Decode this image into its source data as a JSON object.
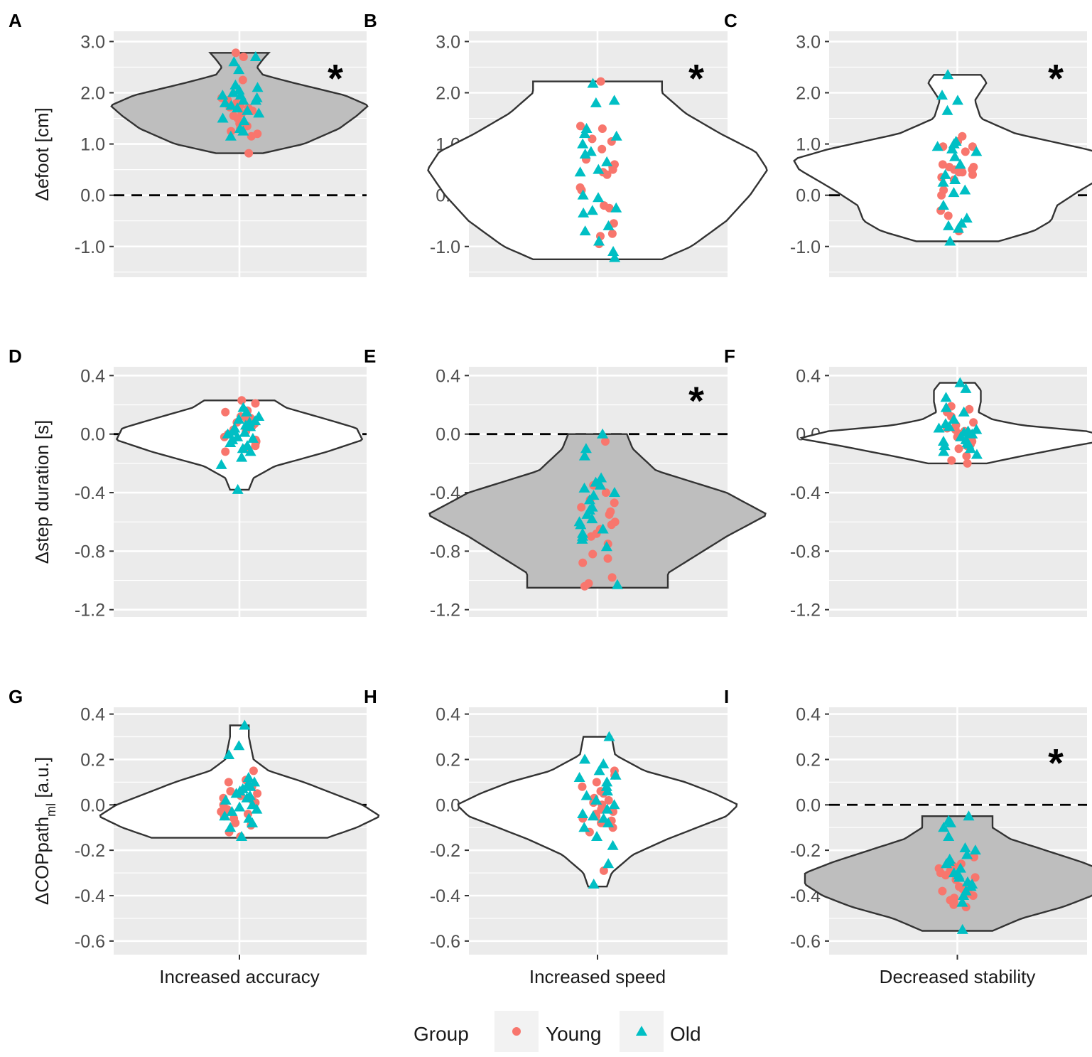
{
  "legend": {
    "title": "Group",
    "items": [
      {
        "label": "Young",
        "shape": "circle",
        "color": "#F8766D"
      },
      {
        "label": "Old",
        "shape": "triangle",
        "color": "#00BFC4"
      }
    ]
  },
  "colors": {
    "panel_bg": "#EBEBEB",
    "grid": "#FFFFFF",
    "violin_significant": "#BEBEBE",
    "violin_default": "#FFFFFF",
    "violin_stroke": "#333333",
    "young": "#F8766D",
    "old": "#00BFC4"
  },
  "chart_data": [
    {
      "panel": "A",
      "type": "violin",
      "row": 0,
      "col": 0,
      "ylabel": "Δefoot [cm]",
      "ylim": [
        -1.6,
        3.2
      ],
      "yticks": [
        3.0,
        2.0,
        1.0,
        0.0,
        -1.0
      ],
      "tick_labels": [
        "3.0",
        "2.0",
        "1.0",
        "0.0",
        "-1.0"
      ],
      "xlabel": "",
      "significant": true,
      "star": "*",
      "violin": {
        "range": [
          0.82,
          2.78
        ],
        "profile": [
          [
            0.82,
            0.2
          ],
          [
            1.0,
            0.55
          ],
          [
            1.3,
            0.85
          ],
          [
            1.55,
            1.0
          ],
          [
            1.75,
            1.1
          ],
          [
            1.95,
            0.9
          ],
          [
            2.2,
            0.45
          ],
          [
            2.35,
            0.2
          ],
          [
            2.5,
            0.15
          ],
          [
            2.65,
            0.2
          ],
          [
            2.78,
            0.25
          ]
        ]
      },
      "young": [
        1.85,
        1.7,
        1.6,
        1.5,
        1.25,
        1.15,
        0.82,
        1.4,
        1.3,
        1.75,
        1.9,
        2.25,
        2.7,
        2.78,
        1.65,
        1.55,
        1.8,
        1.72,
        1.2,
        1.35
      ],
      "old": [
        2.7,
        2.45,
        2.6,
        2.05,
        1.95,
        1.85,
        1.75,
        2.0,
        1.45,
        1.25,
        1.3,
        1.15,
        1.9,
        2.1,
        1.8,
        1.65,
        1.5,
        1.6,
        1.95,
        2.15,
        1.85,
        1.7
      ]
    },
    {
      "panel": "B",
      "type": "violin",
      "row": 0,
      "col": 1,
      "ylabel": "",
      "ylim": [
        -1.6,
        3.2
      ],
      "yticks": [
        3.0,
        2.0,
        1.0,
        0.0,
        -1.0
      ],
      "tick_labels": [
        "3.0",
        "2.0",
        "1.0",
        "0.0",
        "-1.0"
      ],
      "xlabel": "",
      "significant": false,
      "star": "*",
      "violin": {
        "range": [
          -1.25,
          2.22
        ],
        "profile": [
          [
            -1.25,
            0.55
          ],
          [
            -1.0,
            0.8
          ],
          [
            -0.5,
            1.1
          ],
          [
            0.0,
            1.3
          ],
          [
            0.5,
            1.45
          ],
          [
            0.85,
            1.35
          ],
          [
            1.2,
            1.05
          ],
          [
            1.6,
            0.75
          ],
          [
            2.0,
            0.55
          ],
          [
            2.22,
            0.55
          ]
        ]
      },
      "young": [
        2.22,
        1.35,
        1.1,
        1.05,
        0.7,
        0.55,
        0.45,
        0.4,
        0.1,
        -0.2,
        -0.55,
        -0.8,
        -0.95,
        1.3,
        0.9,
        0.6,
        0.5,
        0.15,
        -0.25,
        -0.75
      ],
      "old": [
        2.18,
        1.85,
        1.8,
        1.3,
        1.2,
        1.15,
        0.85,
        0.8,
        0.5,
        0.45,
        -0.05,
        -0.3,
        -0.35,
        -0.6,
        -0.7,
        -0.9,
        -1.1,
        -1.22,
        0.0,
        -0.25,
        0.65,
        1.0
      ]
    },
    {
      "panel": "C",
      "type": "violin",
      "row": 0,
      "col": 2,
      "ylabel": "",
      "ylim": [
        -1.6,
        3.2
      ],
      "yticks": [
        3.0,
        2.0,
        1.0,
        0.0,
        -1.0
      ],
      "tick_labels": [
        "3.0",
        "2.0",
        "1.0",
        "0.0",
        "-1.0"
      ],
      "xlabel": "",
      "significant": false,
      "star": "*",
      "violin": {
        "range": [
          -0.9,
          2.35
        ],
        "profile": [
          [
            -0.9,
            0.35
          ],
          [
            -0.7,
            0.65
          ],
          [
            -0.5,
            0.8
          ],
          [
            -0.2,
            0.85
          ],
          [
            0.1,
            1.05
          ],
          [
            0.5,
            1.35
          ],
          [
            0.7,
            1.4
          ],
          [
            0.9,
            1.1
          ],
          [
            1.2,
            0.5
          ],
          [
            1.5,
            0.2
          ],
          [
            1.85,
            0.15
          ],
          [
            2.2,
            0.25
          ],
          [
            2.35,
            0.2
          ]
        ]
      },
      "young": [
        1.15,
        1.05,
        0.95,
        0.85,
        0.6,
        0.55,
        0.5,
        0.45,
        0.4,
        0.35,
        0.1,
        0.0,
        -0.3,
        -0.4,
        -0.7,
        0.45,
        0.5,
        0.3,
        0.55,
        0.95
      ],
      "old": [
        2.35,
        1.95,
        1.85,
        1.65,
        1.05,
        1.0,
        0.95,
        0.9,
        0.85,
        0.6,
        0.4,
        0.3,
        0.1,
        0.05,
        -0.2,
        -0.45,
        -0.55,
        -0.6,
        -0.65,
        -0.9,
        0.75,
        0.25
      ]
    },
    {
      "panel": "D",
      "type": "violin",
      "row": 1,
      "col": 0,
      "ylabel": "Δstep duration [s]",
      "ylim": [
        -1.25,
        0.46
      ],
      "yticks": [
        0.4,
        0.0,
        -0.4,
        -0.8,
        -1.2
      ],
      "tick_labels": [
        "0.4",
        "0.0",
        "-0.4",
        "-0.8",
        "-1.2"
      ],
      "xlabel": "",
      "significant": false,
      "star": "",
      "violin": {
        "range": [
          -0.38,
          0.23
        ],
        "profile": [
          [
            -0.38,
            0.08
          ],
          [
            -0.3,
            0.12
          ],
          [
            -0.22,
            0.3
          ],
          [
            -0.12,
            0.75
          ],
          [
            -0.04,
            1.05
          ],
          [
            0.04,
            1.0
          ],
          [
            0.1,
            0.75
          ],
          [
            0.18,
            0.4
          ],
          [
            0.23,
            0.3
          ]
        ]
      },
      "young": [
        0.23,
        0.21,
        0.16,
        0.12,
        0.08,
        0.05,
        0.02,
        -0.02,
        -0.05,
        -0.08,
        -0.1,
        0.15,
        0.0,
        -0.12,
        0.1,
        0.07,
        -0.04,
        0.03,
        0.11,
        -0.06
      ],
      "old": [
        0.18,
        0.15,
        0.1,
        0.08,
        0.05,
        0.04,
        0.02,
        0.0,
        -0.02,
        -0.04,
        -0.06,
        -0.08,
        -0.12,
        -0.16,
        -0.21,
        -0.38,
        0.12,
        -0.1,
        0.06,
        -0.03,
        0.09,
        0.01
      ]
    },
    {
      "panel": "E",
      "type": "violin",
      "row": 1,
      "col": 1,
      "ylabel": "",
      "ylim": [
        -1.25,
        0.46
      ],
      "yticks": [
        0.4,
        0.0,
        -0.4,
        -0.8,
        -1.2
      ],
      "tick_labels": [
        "0.4",
        "0.0",
        "-0.4",
        "-0.8",
        "-1.2"
      ],
      "xlabel": "",
      "significant": true,
      "star": "*",
      "violin": {
        "range": [
          -1.05,
          0.0
        ],
        "profile": [
          [
            -1.05,
            0.6
          ],
          [
            -0.95,
            0.6
          ],
          [
            -0.85,
            0.8
          ],
          [
            -0.7,
            1.1
          ],
          [
            -0.55,
            1.45
          ],
          [
            -0.4,
            1.1
          ],
          [
            -0.25,
            0.5
          ],
          [
            -0.1,
            0.3
          ],
          [
            0.0,
            0.25
          ]
        ]
      },
      "young": [
        -0.05,
        -0.35,
        -0.4,
        -0.45,
        -0.5,
        -0.55,
        -0.6,
        -0.65,
        -0.7,
        -0.75,
        -0.82,
        -0.85,
        -0.88,
        -0.98,
        -1.02,
        -1.04,
        -0.47,
        -0.53,
        -0.62,
        -0.68
      ],
      "old": [
        0.0,
        -0.1,
        -0.15,
        -0.3,
        -0.33,
        -0.37,
        -0.42,
        -0.45,
        -0.5,
        -0.55,
        -0.58,
        -0.62,
        -0.65,
        -0.68,
        -0.7,
        -0.72,
        -0.77,
        -1.03,
        -0.4,
        -0.52,
        -0.6,
        -0.35
      ]
    },
    {
      "panel": "F",
      "type": "violin",
      "row": 1,
      "col": 2,
      "ylabel": "",
      "ylim": [
        -1.25,
        0.46
      ],
      "yticks": [
        0.4,
        0.0,
        -0.4,
        -0.8,
        -1.2
      ],
      "tick_labels": [
        "0.4",
        "0.0",
        "-0.4",
        "-0.8",
        "-1.2"
      ],
      "xlabel": "",
      "significant": false,
      "star": "",
      "violin": {
        "range": [
          -0.2,
          0.35
        ],
        "profile": [
          [
            -0.2,
            0.25
          ],
          [
            -0.15,
            0.55
          ],
          [
            -0.08,
            1.0
          ],
          [
            -0.03,
            1.35
          ],
          [
            0.02,
            1.1
          ],
          [
            0.06,
            0.55
          ],
          [
            0.1,
            0.3
          ],
          [
            0.15,
            0.18
          ],
          [
            0.22,
            0.2
          ],
          [
            0.3,
            0.2
          ],
          [
            0.35,
            0.15
          ]
        ]
      },
      "young": [
        0.19,
        0.17,
        0.15,
        0.12,
        0.08,
        0.04,
        0.02,
        0.0,
        -0.02,
        -0.05,
        -0.07,
        -0.1,
        -0.15,
        -0.18,
        -0.2,
        0.03,
        -0.03,
        0.06,
        0.01,
        -0.08
      ],
      "old": [
        0.35,
        0.31,
        0.25,
        0.18,
        0.15,
        0.1,
        0.07,
        0.05,
        0.03,
        0.02,
        0.0,
        -0.02,
        -0.04,
        -0.06,
        -0.08,
        -0.1,
        -0.12,
        -0.14,
        0.04,
        -0.05,
        0.01,
        -0.07
      ]
    },
    {
      "panel": "G",
      "type": "violin",
      "row": 2,
      "col": 0,
      "ylabel": "ΔCOPpath",
      "ylabel_sub": "ml",
      "ylabel_suffix": " [a.u.]",
      "ylim": [
        -0.66,
        0.43
      ],
      "yticks": [
        0.4,
        0.2,
        0.0,
        -0.2,
        -0.4,
        -0.6
      ],
      "tick_labels": [
        "0.4",
        "0.2",
        "0.0",
        "-0.2",
        "-0.4",
        "-0.6"
      ],
      "xlabel": "Increased accuracy",
      "significant": false,
      "star": "",
      "violin": {
        "range": [
          -0.145,
          0.35
        ],
        "profile": [
          [
            -0.145,
            0.75
          ],
          [
            -0.1,
            1.0
          ],
          [
            -0.05,
            1.2
          ],
          [
            0.0,
            1.05
          ],
          [
            0.05,
            0.8
          ],
          [
            0.1,
            0.55
          ],
          [
            0.15,
            0.25
          ],
          [
            0.2,
            0.12
          ],
          [
            0.3,
            0.08
          ],
          [
            0.35,
            0.08
          ]
        ]
      },
      "young": [
        0.15,
        0.11,
        0.08,
        0.06,
        0.05,
        0.03,
        0.01,
        0.0,
        -0.02,
        -0.04,
        -0.06,
        -0.08,
        -0.09,
        -0.12,
        -0.14,
        0.1,
        -0.03,
        0.04,
        0.02,
        -0.05
      ],
      "old": [
        0.35,
        0.26,
        0.22,
        0.12,
        0.1,
        0.09,
        0.07,
        0.06,
        0.04,
        0.03,
        0.02,
        0.0,
        -0.01,
        -0.03,
        -0.05,
        -0.06,
        -0.08,
        -0.1,
        -0.14,
        0.05,
        -0.02,
        0.08
      ]
    },
    {
      "panel": "H",
      "type": "violin",
      "row": 2,
      "col": 1,
      "ylabel": "",
      "ylim": [
        -0.66,
        0.43
      ],
      "yticks": [
        0.4,
        0.2,
        0.0,
        -0.2,
        -0.4,
        -0.6
      ],
      "tick_labels": [
        "0.4",
        "0.2",
        "0.0",
        "-0.2",
        "-0.4",
        "-0.6"
      ],
      "xlabel": "Increased speed",
      "significant": false,
      "star": "",
      "violin": {
        "range": [
          -0.36,
          0.3
        ],
        "profile": [
          [
            -0.36,
            0.08
          ],
          [
            -0.3,
            0.12
          ],
          [
            -0.22,
            0.3
          ],
          [
            -0.15,
            0.6
          ],
          [
            -0.05,
            1.1
          ],
          [
            0.0,
            1.2
          ],
          [
            0.05,
            1.0
          ],
          [
            0.1,
            0.75
          ],
          [
            0.15,
            0.4
          ],
          [
            0.22,
            0.15
          ],
          [
            0.3,
            0.12
          ]
        ]
      },
      "young": [
        0.15,
        0.13,
        0.1,
        0.08,
        0.05,
        0.03,
        0.01,
        0.0,
        -0.02,
        -0.03,
        -0.05,
        -0.07,
        -0.08,
        -0.1,
        -0.12,
        -0.29,
        0.06,
        -0.04,
        0.02,
        -0.06
      ],
      "old": [
        0.3,
        0.2,
        0.18,
        0.15,
        0.13,
        0.1,
        0.08,
        0.06,
        0.04,
        0.02,
        0.0,
        -0.02,
        -0.04,
        -0.06,
        -0.08,
        -0.1,
        -0.14,
        -0.18,
        -0.26,
        -0.35,
        0.12,
        -0.05
      ]
    },
    {
      "panel": "I",
      "type": "violin",
      "row": 2,
      "col": 2,
      "ylabel": "",
      "ylim": [
        -0.66,
        0.43
      ],
      "yticks": [
        0.4,
        0.2,
        0.0,
        -0.2,
        -0.4,
        -0.6
      ],
      "tick_labels": [
        "0.4",
        "0.2",
        "0.0",
        "-0.2",
        "-0.4",
        "-0.6"
      ],
      "xlabel": "Decreased stability",
      "significant": true,
      "star": "*",
      "violin": {
        "range": [
          -0.555,
          -0.05
        ],
        "profile": [
          [
            -0.555,
            0.3
          ],
          [
            -0.5,
            0.55
          ],
          [
            -0.45,
            0.9
          ],
          [
            -0.4,
            1.15
          ],
          [
            -0.35,
            1.3
          ],
          [
            -0.3,
            1.3
          ],
          [
            -0.25,
            1.05
          ],
          [
            -0.2,
            0.75
          ],
          [
            -0.15,
            0.45
          ],
          [
            -0.1,
            0.3
          ],
          [
            -0.05,
            0.3
          ]
        ]
      },
      "young": [
        -0.23,
        -0.26,
        -0.28,
        -0.3,
        -0.31,
        -0.33,
        -0.35,
        -0.37,
        -0.38,
        -0.4,
        -0.41,
        -0.42,
        -0.43,
        -0.44,
        -0.45,
        -0.29,
        -0.36,
        -0.39,
        -0.32,
        -0.27
      ],
      "old": [
        -0.05,
        -0.07,
        -0.08,
        -0.1,
        -0.14,
        -0.19,
        -0.2,
        -0.22,
        -0.24,
        -0.26,
        -0.28,
        -0.3,
        -0.32,
        -0.34,
        -0.36,
        -0.38,
        -0.4,
        -0.43,
        -0.55,
        -0.25,
        -0.31,
        -0.35
      ]
    }
  ]
}
